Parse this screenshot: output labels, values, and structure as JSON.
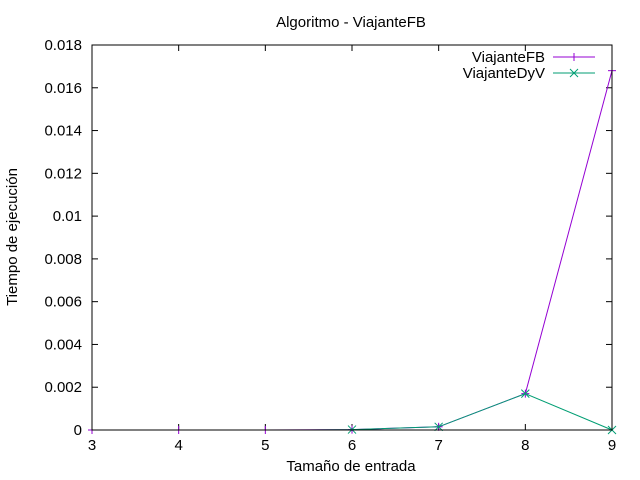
{
  "chart_data": {
    "type": "line",
    "title": "Algoritmo - ViajanteFB",
    "xlabel": "Tamaño de entrada",
    "ylabel": "Tiempo de ejecución",
    "xlim": [
      3,
      9
    ],
    "ylim": [
      0,
      0.018
    ],
    "xticks": [
      "3",
      "4",
      "5",
      "6",
      "7",
      "8",
      "9"
    ],
    "yticks": [
      "0",
      "0.002",
      "0.004",
      "0.006",
      "0.008",
      "0.01",
      "0.012",
      "0.014",
      "0.016",
      "0.018"
    ],
    "grid": false,
    "legend_position": "top-right",
    "series": [
      {
        "name": "ViajanteFB",
        "color": "#9400d3",
        "marker": "plus",
        "points": [
          {
            "x": 3,
            "y": 0
          },
          {
            "x": 4,
            "y": 0
          },
          {
            "x": 5,
            "y": 0
          },
          {
            "x": 6,
            "y": 2e-05
          },
          {
            "x": 7,
            "y": 0.00015
          },
          {
            "x": 8,
            "y": 0.0017
          },
          {
            "x": 9,
            "y": 0.0168
          }
        ]
      },
      {
        "name": "ViajanteDyV",
        "color": "#009e73",
        "marker": "cross",
        "points": [
          {
            "x": 5.5,
            "y": 0
          },
          {
            "x": 6,
            "y": 2e-05
          },
          {
            "x": 7,
            "y": 0.00015
          },
          {
            "x": 8,
            "y": 0.0017
          },
          {
            "x": 9,
            "y": 0
          }
        ]
      }
    ]
  }
}
